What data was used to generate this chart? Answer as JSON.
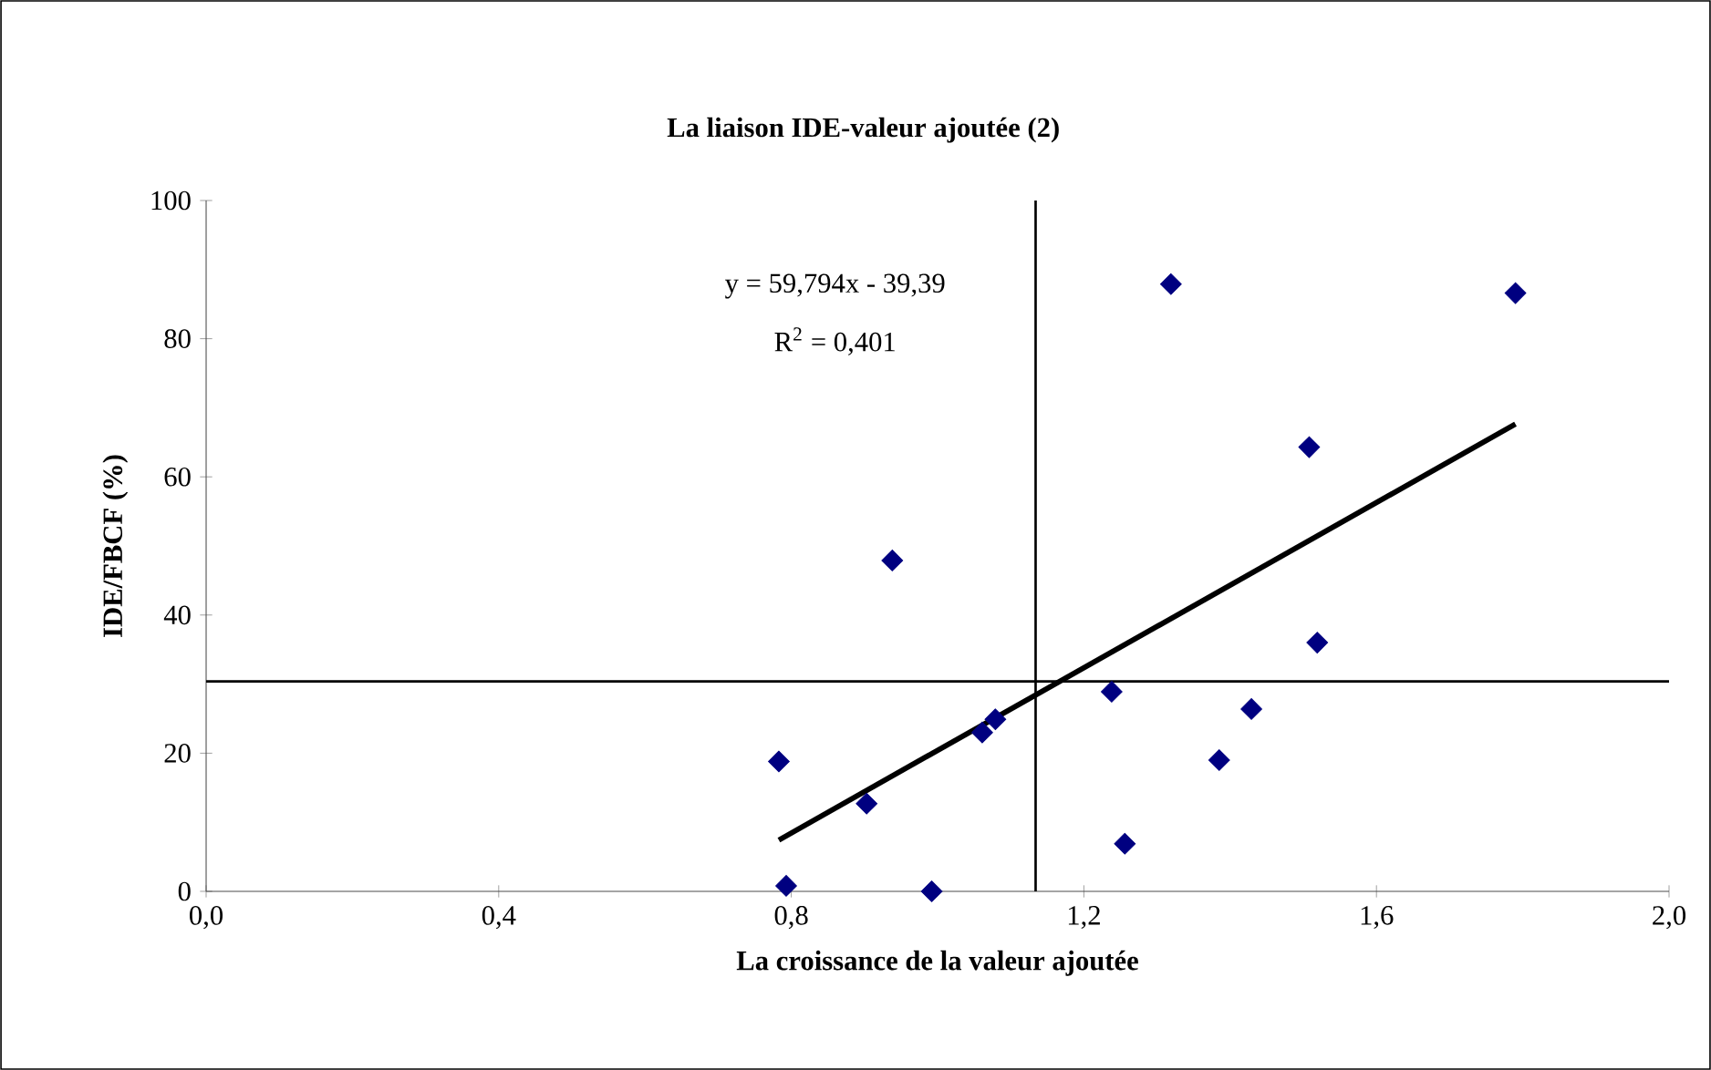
{
  "chart_data": {
    "type": "scatter",
    "title": "La liaison IDE-valeur ajoutée (2)",
    "xlabel": "La croissance de la valeur ajoutée",
    "ylabel": "IDE/FBCF (%)",
    "annotations": [
      "y = 59,794x - 39,39",
      "R$^{2}$ = 0,401"
    ],
    "xlim": [
      0,
      2.0
    ],
    "ylim": [
      0,
      100
    ],
    "xticks": [
      {
        "value": 0,
        "label": "0,0"
      },
      {
        "value": 0.4,
        "label": "0,4"
      },
      {
        "value": 0.8,
        "label": "0,8"
      },
      {
        "value": 1.2,
        "label": "1,2"
      },
      {
        "value": 1.6,
        "label": "1,6"
      },
      {
        "value": 2.0,
        "label": "2,0"
      }
    ],
    "yticks": [
      0,
      20,
      40,
      60,
      80,
      100
    ],
    "grid": false,
    "series": [
      {
        "color": "#000080",
        "marker": "diamond",
        "x": [
          0.783,
          0.793,
          0.903,
          0.938,
          0.992,
          1.061,
          1.079,
          1.238,
          1.256,
          1.319,
          1.385,
          1.429,
          1.508,
          1.519,
          1.79
        ],
        "values": [
          18.8,
          0.8,
          12.7,
          47.9,
          0,
          23.0,
          24.9,
          28.9,
          6.9,
          87.9,
          19.0,
          26.4,
          64.3,
          36.0,
          86.6
        ]
      },
      {
        "type": "line",
        "color": "#000000",
        "marker": "none",
        "line_style": "solid",
        "x": [
          0.783,
          1.79
        ],
        "values": [
          7.43,
          67.64
        ]
      }
    ],
    "ref_lines": [
      {
        "axis": "x",
        "value": 1.134,
        "color": "#000000"
      },
      {
        "axis": "y",
        "value": 30.4,
        "color": "#000000"
      }
    ]
  }
}
